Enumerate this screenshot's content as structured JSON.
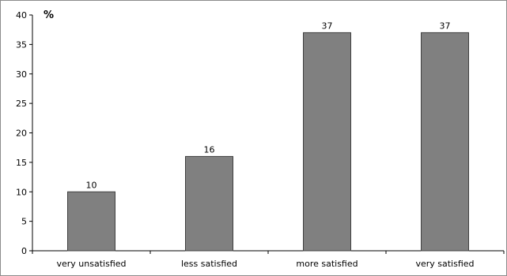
{
  "chart_data": {
    "type": "bar",
    "categories": [
      "very unsatisfied",
      "less satisfied",
      "more satisfied",
      "very satisfied"
    ],
    "values": [
      10,
      16,
      37,
      37
    ],
    "data_labels": [
      "10",
      "16",
      "37",
      "37"
    ],
    "title": "",
    "xlabel": "",
    "ylabel": "%",
    "ylim": [
      0,
      40
    ],
    "yticks": [
      0,
      5,
      10,
      15,
      20,
      25,
      30,
      35,
      40
    ],
    "grid": false,
    "legend": "none",
    "bar_color": "#808080",
    "bar_edge_color": "#404040"
  }
}
